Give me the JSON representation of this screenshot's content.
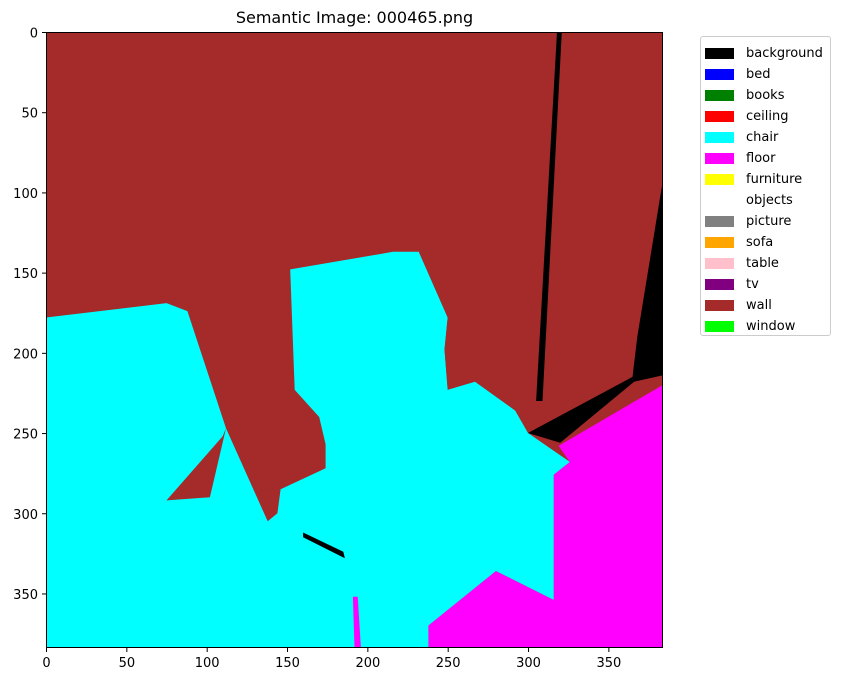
{
  "title": "Semantic Image: 000465.png",
  "chart_data": {
    "type": "heatmap",
    "title": "Semantic Image: 000465.png",
    "xlim": [
      0,
      384
    ],
    "ylim": [
      384,
      0
    ],
    "xticks": [
      0,
      50,
      100,
      150,
      200,
      250,
      300,
      350
    ],
    "yticks": [
      0,
      50,
      100,
      150,
      200,
      250,
      300,
      350
    ],
    "legend_placement": "outside-right",
    "legend": [
      {
        "label": "background",
        "color": "#000000"
      },
      {
        "label": "bed",
        "color": "#0000ff"
      },
      {
        "label": "books",
        "color": "#008000"
      },
      {
        "label": "ceiling",
        "color": "#ff0000"
      },
      {
        "label": "chair",
        "color": "#00ffff"
      },
      {
        "label": "floor",
        "color": "#ff00ff"
      },
      {
        "label": "furniture",
        "color": "#ffff00"
      },
      {
        "label": "objects",
        "color": "#ffffff"
      },
      {
        "label": "picture",
        "color": "#808080"
      },
      {
        "label": "sofa",
        "color": "#ffa500"
      },
      {
        "label": "table",
        "color": "#ffc0cb"
      },
      {
        "label": "tv",
        "color": "#800080"
      },
      {
        "label": "wall",
        "color": "#a52a2a"
      },
      {
        "label": "window",
        "color": "#00ff00"
      }
    ],
    "regions": [
      {
        "class": "wall",
        "points": [
          [
            0,
            0
          ],
          [
            384,
            0
          ],
          [
            384,
            384
          ],
          [
            0,
            384
          ]
        ]
      },
      {
        "class": "background",
        "points": [
          [
            318,
            0
          ],
          [
            321,
            0
          ],
          [
            309,
            230
          ],
          [
            305,
            230
          ]
        ]
      },
      {
        "class": "background",
        "points": [
          [
            384,
            92
          ],
          [
            384,
            214
          ],
          [
            366,
            218
          ],
          [
            320,
            256
          ],
          [
            300,
            250
          ],
          [
            365,
            215
          ],
          [
            368,
            190
          ]
        ]
      },
      {
        "class": "floor",
        "points": [
          [
            384,
            220
          ],
          [
            384,
            384
          ],
          [
            238,
            384
          ],
          [
            238,
            370
          ],
          [
            280,
            336
          ],
          [
            316,
            354
          ],
          [
            316,
            276
          ],
          [
            326,
            268
          ],
          [
            319,
            258
          ]
        ]
      },
      {
        "class": "chair",
        "points": [
          [
            0,
            178
          ],
          [
            75,
            169
          ],
          [
            88,
            174
          ],
          [
            112,
            247
          ],
          [
            138,
            305
          ],
          [
            144,
            300
          ],
          [
            146,
            285
          ],
          [
            174,
            272
          ],
          [
            174,
            257
          ],
          [
            155,
            228
          ],
          [
            152,
            148
          ],
          [
            216,
            137
          ],
          [
            232,
            137
          ],
          [
            250,
            178
          ],
          [
            248,
            198
          ],
          [
            250,
            223
          ],
          [
            267,
            218
          ],
          [
            292,
            236
          ],
          [
            300,
            250
          ],
          [
            326,
            268
          ],
          [
            316,
            276
          ],
          [
            316,
            354
          ],
          [
            280,
            336
          ],
          [
            238,
            370
          ],
          [
            238,
            384
          ],
          [
            0,
            384
          ]
        ]
      },
      {
        "class": "wall",
        "points": [
          [
            112,
            247
          ],
          [
            102,
            290
          ],
          [
            75,
            292
          ],
          [
            110,
            252
          ]
        ]
      },
      {
        "class": "wall",
        "points": [
          [
            152,
            220
          ],
          [
            170,
            240
          ],
          [
            174,
            257
          ],
          [
            160,
            270
          ],
          [
            152,
            260
          ]
        ]
      },
      {
        "class": "wall",
        "points": [
          [
            232,
            137
          ],
          [
            260,
            136
          ],
          [
            272,
            175
          ],
          [
            250,
            178
          ]
        ]
      },
      {
        "class": "wall",
        "points": [
          [
            250,
            178
          ],
          [
            272,
            175
          ],
          [
            285,
            208
          ],
          [
            266,
            218
          ],
          [
            250,
            223
          ],
          [
            248,
            198
          ]
        ]
      },
      {
        "class": "background",
        "points": [
          [
            160,
            312
          ],
          [
            185,
            324
          ],
          [
            186,
            328
          ],
          [
            160,
            315
          ]
        ]
      },
      {
        "class": "floor",
        "points": [
          [
            191,
            352
          ],
          [
            194,
            352
          ],
          [
            196,
            384
          ],
          [
            192,
            384
          ]
        ]
      }
    ]
  }
}
